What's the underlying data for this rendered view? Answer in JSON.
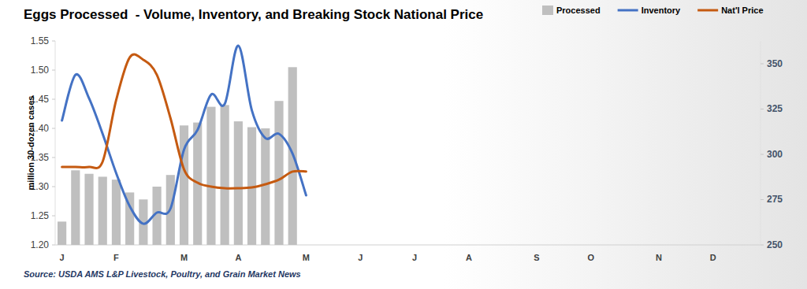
{
  "chart_data": {
    "type": "bar",
    "title": "Eggs Processed  - Volume, Inventory, and Breaking Stock National Price",
    "ylabel": "million 30-dozen cases",
    "source": "Source: USDA AMS L&P Livestock, Poultry, and Grain Market News",
    "categories": [
      "J",
      null,
      null,
      null,
      "F",
      null,
      null,
      null,
      null,
      "M",
      null,
      null,
      null,
      "A",
      null,
      null,
      null,
      null,
      "M",
      null,
      null,
      null,
      "J",
      null,
      null,
      null,
      "J",
      null,
      null,
      null,
      "A",
      null,
      null,
      null,
      null,
      "S",
      null,
      null,
      null,
      "O",
      null,
      null,
      null,
      null,
      "N",
      null,
      null,
      null,
      "D",
      null,
      null,
      null
    ],
    "series": [
      {
        "name": "Processed",
        "type": "bar",
        "color": "#bfbfbf",
        "values": [
          1.24,
          1.328,
          1.322,
          1.317,
          1.312,
          1.29,
          1.278,
          1.3,
          1.32,
          1.405,
          1.41,
          1.437,
          1.44,
          1.412,
          1.402,
          1.4,
          1.447,
          1.505,
          null,
          null,
          null,
          null,
          null,
          null,
          null,
          null,
          null,
          null,
          null,
          null,
          null,
          null,
          null,
          null,
          null,
          null,
          null,
          null,
          null,
          null,
          null,
          null,
          null,
          null,
          null,
          null,
          null,
          null,
          null,
          null,
          null,
          null
        ]
      },
      {
        "name": "Inventory",
        "type": "line",
        "axis": "y2",
        "color": "#4472c4",
        "values": [
          318.7,
          343.9,
          330.9,
          311.3,
          289.6,
          271.3,
          261.7,
          267.8,
          270,
          302.6,
          313.5,
          333,
          327.8,
          360,
          324.3,
          309,
          311.3,
          300.4,
          277.4,
          null,
          null,
          null,
          null,
          null,
          null,
          null,
          null,
          null,
          null,
          null,
          null,
          null,
          null,
          null,
          null,
          null,
          null,
          null,
          null,
          null,
          null,
          null,
          null,
          null,
          null,
          null,
          null,
          null,
          null,
          null,
          null,
          null
        ]
      },
      {
        "name": "Nat'l Price",
        "type": "line",
        "axis": "y2",
        "color": "#c55a11",
        "values": [
          293,
          293,
          293,
          296,
          330,
          353.5,
          352.2,
          343.9,
          320,
          291.7,
          284.3,
          282.2,
          281.3,
          281.3,
          281.7,
          283.5,
          286,
          290.5,
          290.5,
          null,
          null,
          null,
          null,
          null,
          null,
          null,
          null,
          null,
          null,
          null,
          null,
          null,
          null,
          null,
          null,
          null,
          null,
          null,
          null,
          null,
          null,
          null,
          null,
          null,
          null,
          null,
          null,
          null,
          null,
          null,
          null,
          null
        ]
      }
    ],
    "ylim": [
      1.2,
      1.55
    ],
    "yticks": [
      {
        "value": 1.2,
        "label": "1.20"
      },
      1.25,
      {
        "value": 1.3,
        "label": "1.30"
      },
      1.35,
      {
        "value": 1.4,
        "label": "1.40"
      },
      1.45,
      {
        "value": 1.5,
        "label": "1.50"
      },
      1.55
    ],
    "y2lim": [
      250,
      362.6
    ],
    "y2ticks": [
      250,
      275,
      300,
      325,
      350
    ],
    "grid": false,
    "legend": "top"
  }
}
